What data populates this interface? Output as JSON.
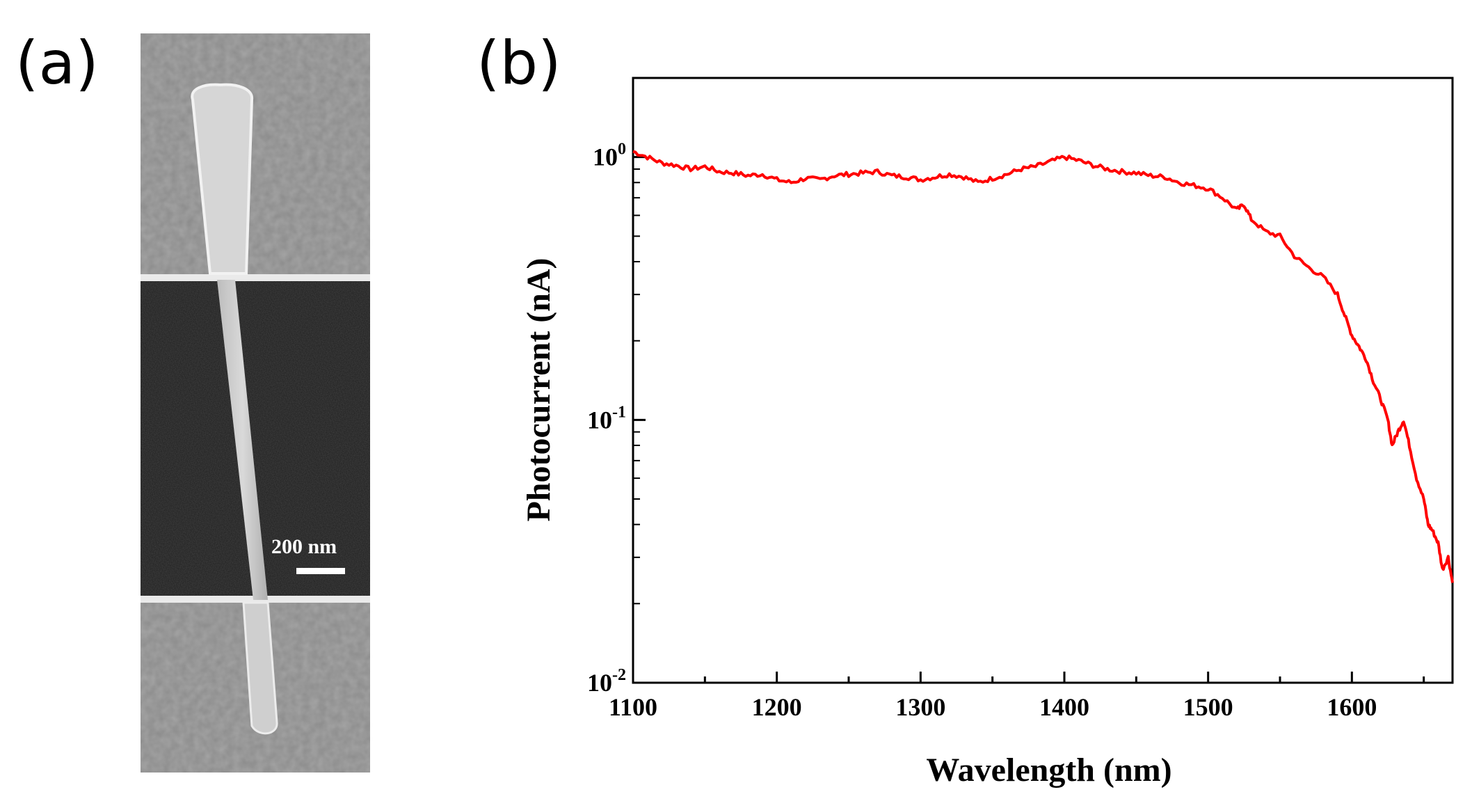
{
  "panels": {
    "a_label": "(a)",
    "b_label": "(b)"
  },
  "sem": {
    "scale_bar_label": "200 nm"
  },
  "chart_data": {
    "type": "line",
    "title": "",
    "xlabel": "Wavelength (nm)",
    "ylabel": "Photocurrent (nA)",
    "xlim": [
      1100,
      1670
    ],
    "ylim": [
      0.01,
      2
    ],
    "yscale": "log",
    "xticks": [
      1100,
      1200,
      1300,
      1400,
      1500,
      1600
    ],
    "yticks": [
      {
        "value": 1,
        "base": "10",
        "exp": "0"
      },
      {
        "value": 0.1,
        "base": "10",
        "exp": "-1"
      },
      {
        "value": 0.01,
        "base": "10",
        "exp": "-2"
      }
    ],
    "grid": false,
    "series": [
      {
        "name": "Photocurrent",
        "color": "#ff0000",
        "x": [
          1100,
          1110,
          1120,
          1130,
          1140,
          1150,
          1160,
          1170,
          1180,
          1190,
          1200,
          1210,
          1220,
          1230,
          1240,
          1250,
          1260,
          1270,
          1280,
          1290,
          1300,
          1310,
          1320,
          1330,
          1340,
          1350,
          1360,
          1370,
          1380,
          1390,
          1400,
          1410,
          1420,
          1430,
          1440,
          1450,
          1460,
          1470,
          1480,
          1490,
          1500,
          1510,
          1520,
          1525,
          1530,
          1540,
          1550,
          1560,
          1570,
          1580,
          1590,
          1595,
          1600,
          1605,
          1610,
          1615,
          1620,
          1625,
          1628,
          1632,
          1636,
          1640,
          1645,
          1650,
          1653,
          1656,
          1660,
          1663,
          1667,
          1670
        ],
        "y": [
          1.05,
          1.0,
          0.95,
          0.93,
          0.9,
          0.92,
          0.88,
          0.87,
          0.85,
          0.86,
          0.82,
          0.8,
          0.83,
          0.82,
          0.85,
          0.86,
          0.87,
          0.88,
          0.85,
          0.84,
          0.82,
          0.84,
          0.86,
          0.84,
          0.8,
          0.83,
          0.86,
          0.9,
          0.92,
          0.96,
          1.0,
          0.97,
          0.93,
          0.9,
          0.88,
          0.87,
          0.85,
          0.84,
          0.8,
          0.78,
          0.76,
          0.7,
          0.63,
          0.66,
          0.58,
          0.52,
          0.5,
          0.42,
          0.38,
          0.35,
          0.3,
          0.25,
          0.21,
          0.19,
          0.17,
          0.14,
          0.12,
          0.1,
          0.08,
          0.09,
          0.1,
          0.08,
          0.06,
          0.05,
          0.04,
          0.038,
          0.034,
          0.027,
          0.03,
          0.024
        ]
      }
    ]
  }
}
